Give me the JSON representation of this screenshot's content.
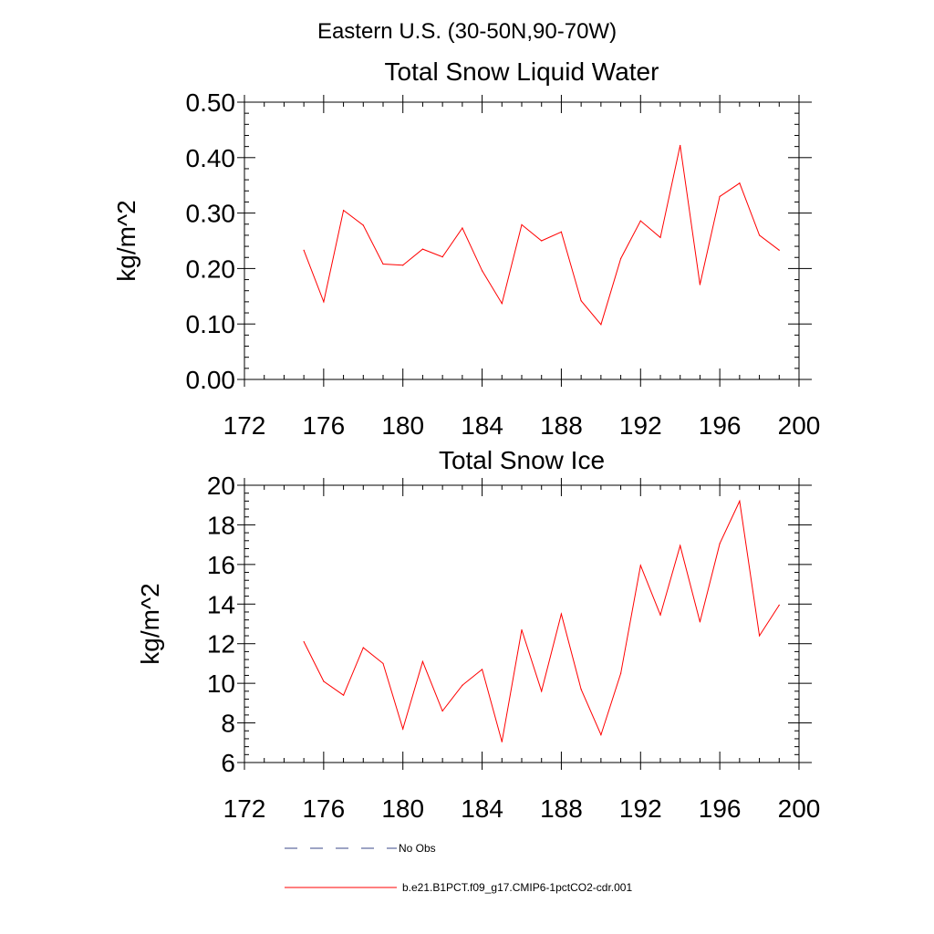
{
  "page_title": "Eastern U.S. (30-50N,90-70W)",
  "colors": {
    "model_line": "#ff0000",
    "obs_line": "#3b4a8a",
    "axes": "#000000"
  },
  "legend": {
    "obs_label": "No Obs",
    "model_label": "b.e21.B1PCT.f09_g17.CMIP6-1pctCO2-cdr.001"
  },
  "chart_data": [
    {
      "type": "line",
      "title": "Total Snow Liquid Water",
      "xlabel": "",
      "ylabel": "kg/m^2",
      "xlim": [
        172,
        200
      ],
      "ylim": [
        0,
        0.5
      ],
      "x_ticks": [
        172,
        176,
        180,
        184,
        188,
        192,
        196,
        200
      ],
      "y_ticks": [
        0,
        0.1,
        0.2,
        0.3,
        0.4,
        0.5
      ],
      "x_tick_labels": [
        "172",
        "176",
        "180",
        "184",
        "188",
        "192",
        "196",
        "200"
      ],
      "y_tick_labels": [
        "0.00",
        "0.10",
        "0.20",
        "0.30",
        "0.40",
        "0.50"
      ],
      "grid": false,
      "series": [
        {
          "x": [
            175,
            176,
            177,
            178,
            179,
            180,
            181,
            182,
            183,
            184,
            185,
            186,
            187,
            188,
            189,
            190,
            191,
            192,
            193,
            194,
            195,
            196,
            197,
            198,
            199
          ],
          "values": [
            0.233,
            0.14,
            0.305,
            0.278,
            0.208,
            0.206,
            0.235,
            0.221,
            0.273,
            0.196,
            0.137,
            0.279,
            0.25,
            0.266,
            0.142,
            0.099,
            0.218,
            0.286,
            0.256,
            0.422,
            0.171,
            0.33,
            0.354,
            0.26,
            0.233
          ]
        }
      ]
    },
    {
      "type": "line",
      "title": "Total Snow Ice",
      "xlabel": "",
      "ylabel": "kg/m^2",
      "xlim": [
        172,
        200
      ],
      "ylim": [
        6,
        20
      ],
      "x_ticks": [
        172,
        176,
        180,
        184,
        188,
        192,
        196,
        200
      ],
      "y_ticks": [
        6,
        8,
        10,
        12,
        14,
        16,
        18,
        20
      ],
      "x_tick_labels": [
        "172",
        "176",
        "180",
        "184",
        "188",
        "192",
        "196",
        "200"
      ],
      "y_tick_labels": [
        "6",
        "8",
        "10",
        "12",
        "14",
        "16",
        "18",
        "20"
      ],
      "grid": false,
      "series": [
        {
          "x": [
            175,
            176,
            177,
            178,
            179,
            180,
            181,
            182,
            183,
            184,
            185,
            186,
            187,
            188,
            189,
            190,
            191,
            192,
            193,
            194,
            195,
            196,
            197,
            198,
            199
          ],
          "values": [
            12.1,
            10.1,
            9.4,
            11.8,
            11.0,
            7.7,
            11.1,
            8.6,
            9.9,
            10.7,
            7.05,
            12.7,
            9.6,
            13.5,
            9.7,
            7.4,
            10.5,
            15.95,
            13.45,
            16.95,
            13.1,
            17.05,
            19.2,
            12.4,
            13.95
          ]
        }
      ]
    }
  ]
}
